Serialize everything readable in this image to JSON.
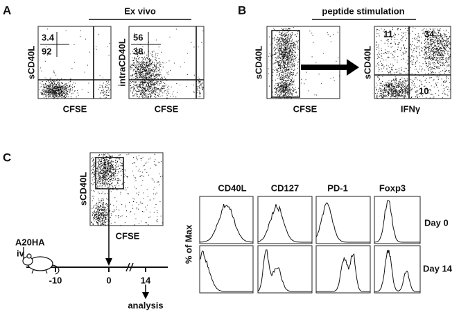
{
  "panel_a": {
    "label": "A",
    "header": "Ex vivo",
    "plots": [
      {
        "y_label": "sCD40L",
        "x_label": "CFSE",
        "quadrants": [
          "3.4",
          "92"
        ]
      },
      {
        "y_label": "intraCD40L",
        "x_label": "CFSE",
        "quadrants": [
          "56",
          "38"
        ]
      }
    ]
  },
  "panel_b": {
    "label": "B",
    "header": "peptide stimulation",
    "plots": [
      {
        "y_label": "sCD40L",
        "x_label": "CFSE"
      },
      {
        "y_label": "sCD40L",
        "x_label": "IFNγ",
        "quadrants": [
          "11",
          "34",
          "10"
        ]
      }
    ]
  },
  "panel_c": {
    "label": "C",
    "plot": {
      "y_label": "sCD40L",
      "x_label": "CFSE"
    },
    "timeline": {
      "injection": "A20HA",
      "route": "iv",
      "ticks": [
        "-10",
        "0",
        "14"
      ],
      "endpoint": "analysis"
    },
    "histograms": {
      "markers": [
        "CD40L",
        "CD127",
        "PD-1",
        "Foxp3"
      ],
      "y_label": "% of Max",
      "rows": [
        "Day 0",
        "Day 14"
      ]
    }
  }
}
